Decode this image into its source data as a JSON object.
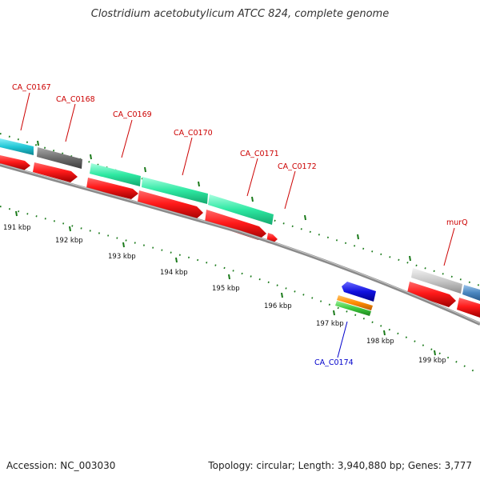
{
  "header": {
    "title": "Clostridium acetobutylicum ATCC 824, complete genome"
  },
  "footer": {
    "accession": "Accession: NC_003030",
    "summary": "Topology: circular; Length: 3,940,880 bp; Genes: 3,777"
  },
  "ruler": {
    "ticks": [
      {
        "label": "191 kbp"
      },
      {
        "label": "192 kbp"
      },
      {
        "label": "193 kbp"
      },
      {
        "label": "194 kbp"
      },
      {
        "label": "195 kbp"
      },
      {
        "label": "196 kbp"
      },
      {
        "label": "197 kbp"
      },
      {
        "label": "198 kbp"
      },
      {
        "label": "199 kbp"
      }
    ]
  },
  "genes": [
    {
      "label": "CA_C0167",
      "color": "#cc0000"
    },
    {
      "label": "CA_C0168",
      "color": "#cc0000"
    },
    {
      "label": "CA_C0169",
      "color": "#cc0000"
    },
    {
      "label": "CA_C0170",
      "color": "#cc0000"
    },
    {
      "label": "CA_C0171",
      "color": "#cc0000"
    },
    {
      "label": "CA_C0172",
      "color": "#cc0000"
    },
    {
      "label": "murQ",
      "color": "#cc0000"
    },
    {
      "label": "CA_C0174",
      "color": "#0000cc"
    }
  ],
  "colors": {
    "gene": "#ff1a1a",
    "cds_cyan": "#22c7d6",
    "cds_gray": "#6e6e6e",
    "cds_green": "#2ee8a2",
    "cds_light": "#c8c8c8",
    "cds_blue": "#4a86c0",
    "reverse_blue": "#1010e0",
    "reverse_orange": "#ff8c00",
    "reverse_green": "#3cc83c",
    "tick": "#1a7a1a",
    "backbone": "#8a8a8a"
  }
}
